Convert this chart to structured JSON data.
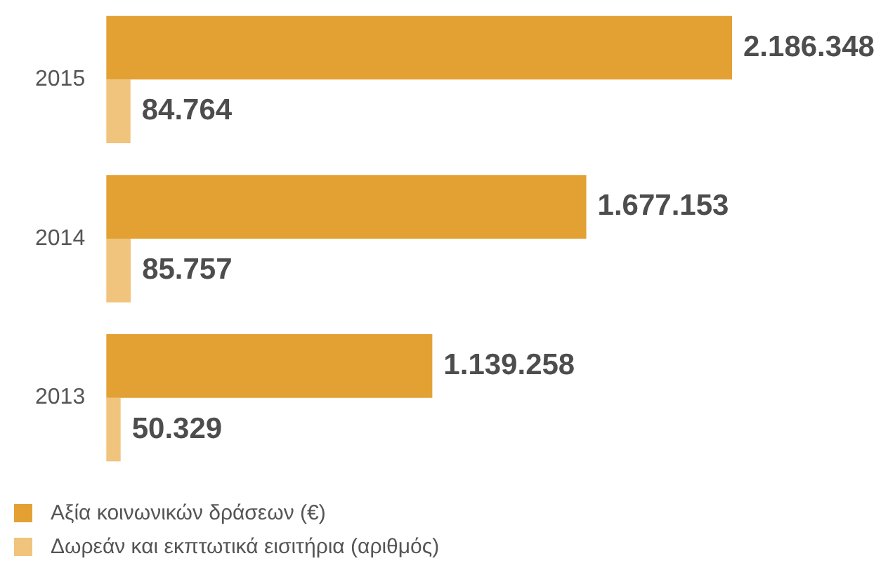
{
  "chart_data": {
    "type": "bar",
    "orientation": "horizontal",
    "categories": [
      "2015",
      "2014",
      "2013"
    ],
    "series": [
      {
        "name": "Αξία κοινωνικών δράσεων (€)",
        "color": "#e3a134",
        "values": [
          2186348,
          1677153,
          1139258
        ],
        "value_labels": [
          "2.186.348",
          "1.677.153",
          "1.139.258"
        ]
      },
      {
        "name": "Δωρεάν και εκπτωτικά εισιτήρια (αριθμός)",
        "color": "#f0c47c",
        "values": [
          84764,
          85757,
          50329
        ],
        "value_labels": [
          "84.764",
          "85.757",
          "50.329"
        ]
      }
    ],
    "legend": "bottom left",
    "grid": false,
    "tick_labels": "y"
  }
}
